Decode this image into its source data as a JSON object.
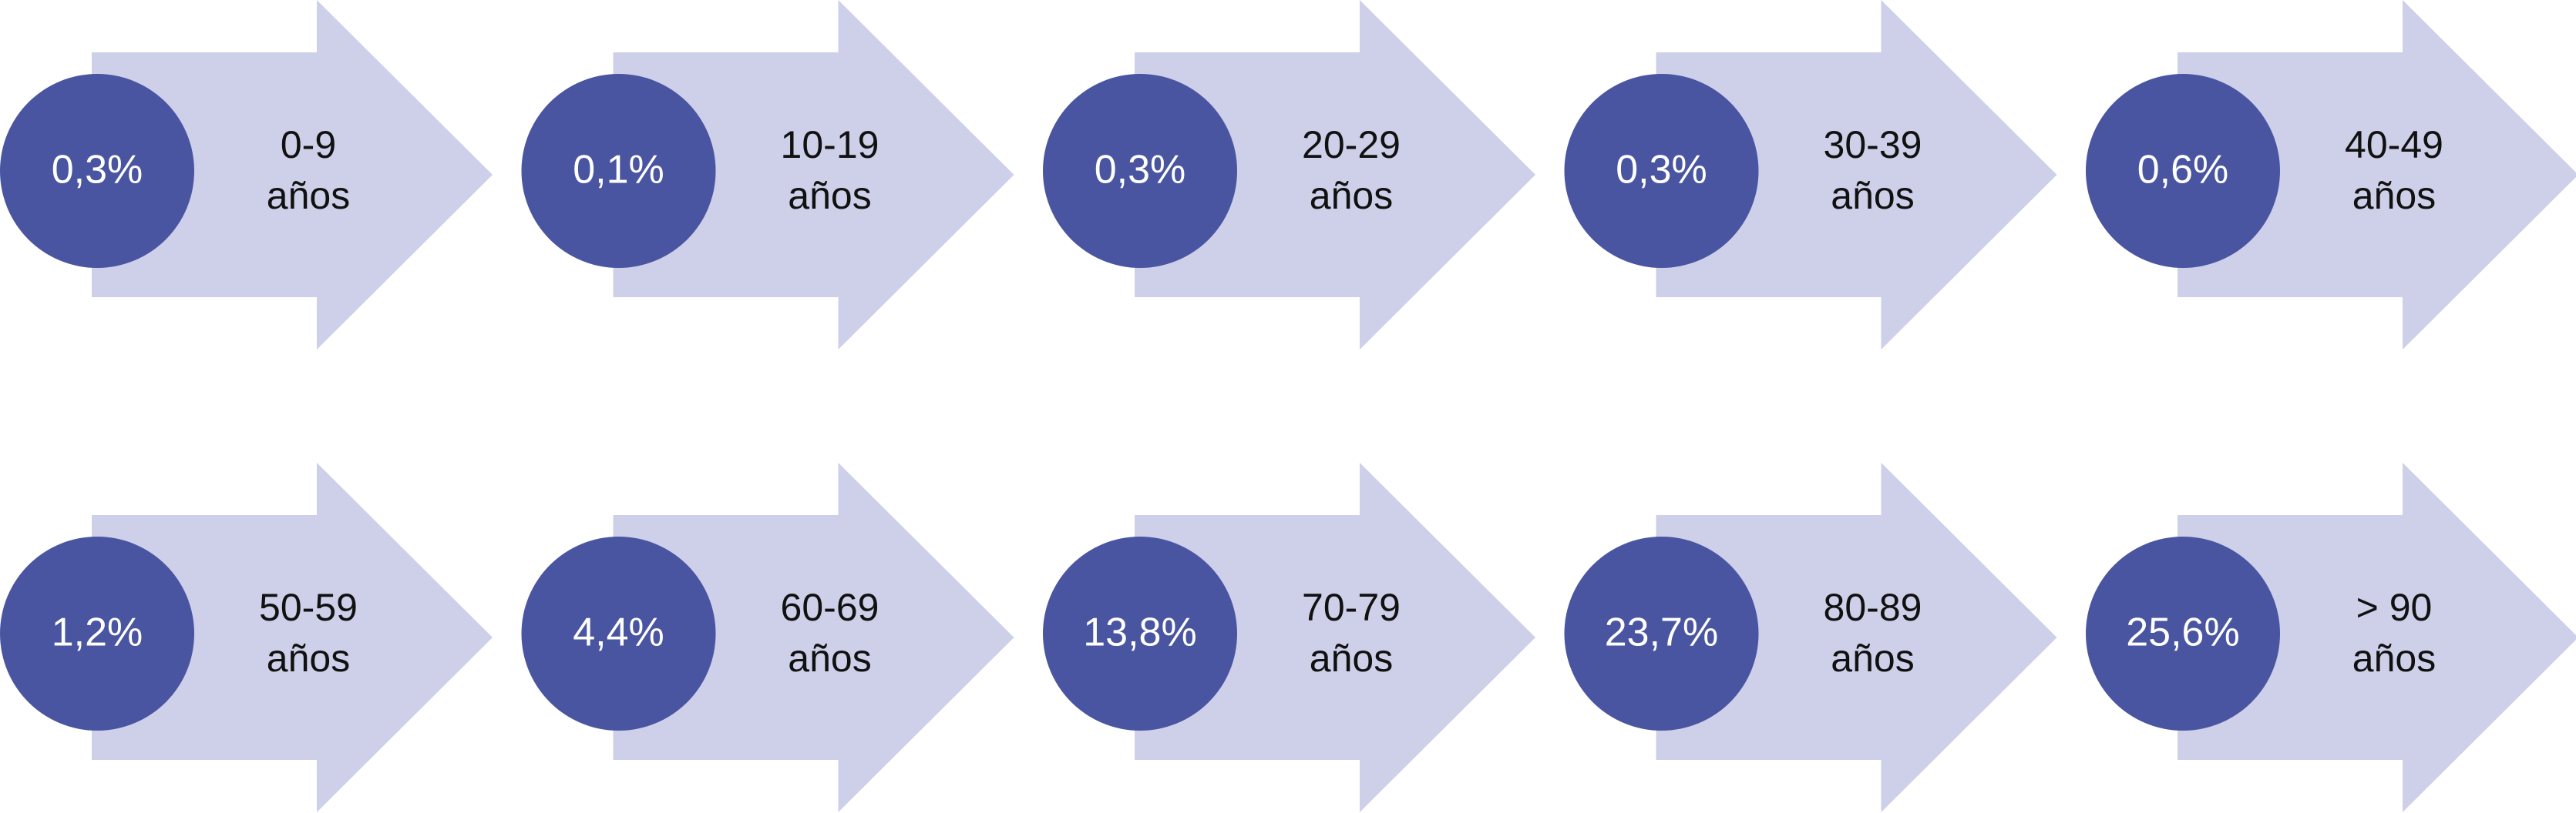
{
  "items": [
    {
      "percent": "0,3%",
      "range": "0-9",
      "unit": "años"
    },
    {
      "percent": "0,1%",
      "range": "10-19",
      "unit": "años"
    },
    {
      "percent": "0,3%",
      "range": "20-29",
      "unit": "años"
    },
    {
      "percent": "0,3%",
      "range": "30-39",
      "unit": "años"
    },
    {
      "percent": "0,6%",
      "range": "40-49",
      "unit": "años"
    },
    {
      "percent": "1,2%",
      "range": "50-59",
      "unit": "años"
    },
    {
      "percent": "4,4%",
      "range": "60-69",
      "unit": "años"
    },
    {
      "percent": "13,8%",
      "range": "70-79",
      "unit": "años"
    },
    {
      "percent": "23,7%",
      "range": "80-89",
      "unit": "años"
    },
    {
      "percent": "25,6%",
      "range": "> 90",
      "unit": "años"
    }
  ]
}
